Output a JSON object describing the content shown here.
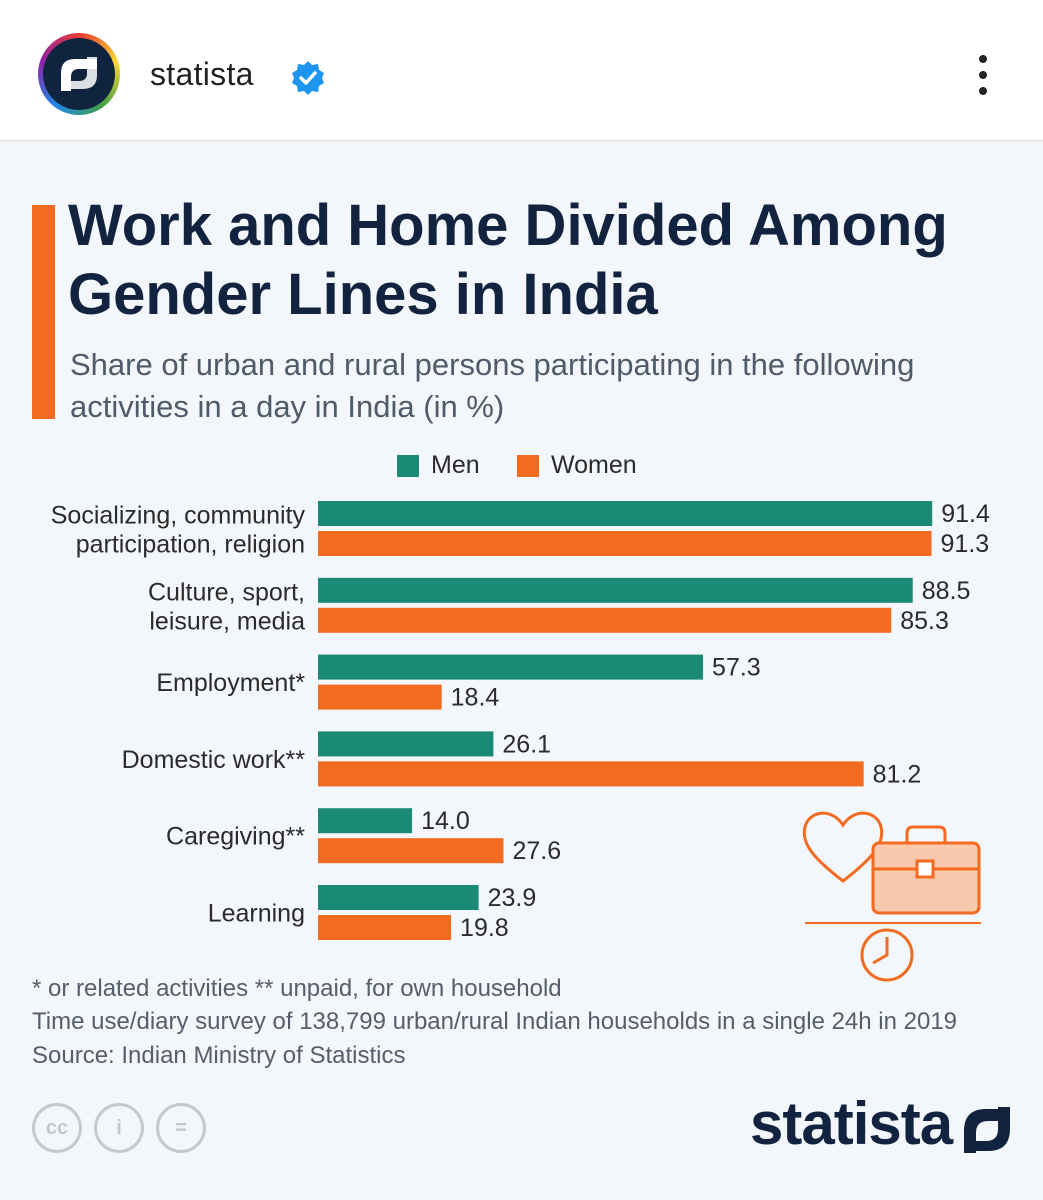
{
  "post": {
    "account_name": "statista",
    "avatar_icon": "statista-logo-icon",
    "verified_icon": "verified-badge-icon",
    "menu_icon": "more-vertical-icon"
  },
  "chart_data": {
    "type": "bar",
    "orientation": "horizontal",
    "title": "Work and Home Divided Among Gender Lines in India",
    "subtitle": "Share of urban and rural persons participating in the following activities in a day in India (in %)",
    "categories": [
      [
        "Socializing, community",
        "participation, religion"
      ],
      [
        "Culture, sport,",
        "leisure, media"
      ],
      [
        "Employment*"
      ],
      [
        "Domestic work**"
      ],
      [
        "Caregiving**"
      ],
      [
        "Learning"
      ]
    ],
    "series": [
      {
        "name": "Men",
        "color": "#1a8a77",
        "values": [
          91.4,
          88.5,
          57.3,
          26.1,
          14.0,
          23.9
        ]
      },
      {
        "name": "Women",
        "color": "#f26b21",
        "values": [
          91.3,
          85.3,
          18.4,
          81.2,
          27.6,
          19.8
        ]
      }
    ],
    "value_labels": {
      "Men": [
        "91.4",
        "88.5",
        "57.3",
        "26.1",
        "14.0",
        "23.9"
      ],
      "Women": [
        "91.3",
        "85.3",
        "18.4",
        "81.2",
        "27.6",
        "19.8"
      ]
    },
    "xlim": [
      0,
      100
    ],
    "grid": false,
    "legend_position": "top-center"
  },
  "footnotes": {
    "asterisks": "* or related activities     ** unpaid, for own household",
    "survey": "Time use/diary survey of 138,799 urban/rural Indian households in a single 24h in 2019",
    "source": "Source: Indian Ministry of Statistics"
  },
  "brand": {
    "name": "statista",
    "license_icons": [
      "cc",
      "i",
      "="
    ]
  },
  "colors": {
    "title": "#12233f",
    "accent": "#f26b21",
    "men": "#1a8a77",
    "women": "#f26b21"
  }
}
